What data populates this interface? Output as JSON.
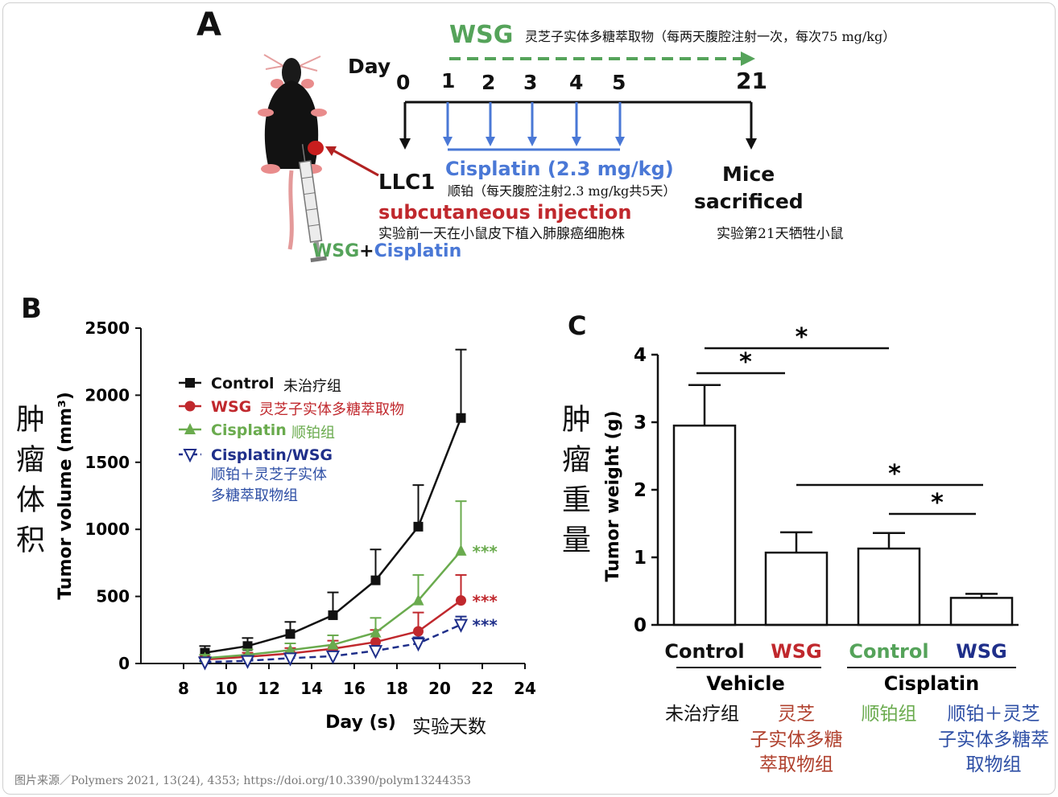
{
  "panel_a": {
    "label": "A",
    "wsg_label": "WSG",
    "wsg_cn": "灵芝子实体多糖萃取物（每两天腹腔注射一次，每次75 mg/kg）",
    "day_label": "Day",
    "days": [
      "0",
      "1",
      "2",
      "3",
      "4",
      "5",
      "21"
    ],
    "cisplatin_label": "Cisplatin  (2.3 mg/kg)",
    "cisplatin_cn": "顺铂（每天腹腔注射2.3 mg/kg共5天）",
    "llc1": "LLC1",
    "subcut": "subcutaneous injection",
    "subcut_cn": "实验前一天在小鼠皮下植入肺腺癌细胞株",
    "mice": "Mice",
    "sacrificed": "sacrificed",
    "sacrificed_cn": "实验第21天牺牲小鼠",
    "combo_wsg": "WSG",
    "combo_plus": "+",
    "combo_cis": "Cisplatin"
  },
  "panel_b": {
    "label": "B",
    "side_cn": "肿瘤体积",
    "xlabel_cn": "实验天数"
  },
  "panel_c": {
    "label": "C",
    "side_cn": "肿瘤重量"
  },
  "footer": "图片来源／Polymers 2021, 13(24), 4353; https://doi.org/10.3390/polym13244353",
  "colors": {
    "black": "#111111",
    "red": "#c0282d",
    "green": "#6aab4e",
    "blue": "#1f2f8a",
    "dgreen": "#55a35a",
    "cisblue": "#4a78d6"
  },
  "chart_data": [
    {
      "type": "line",
      "xlabel": "Day (s)",
      "ylabel": "Tumor volume (mm³)",
      "xlim": [
        6,
        24
      ],
      "ylim": [
        0,
        2500
      ],
      "xticks": [
        8,
        10,
        12,
        14,
        16,
        18,
        20,
        22,
        24
      ],
      "yticks": [
        0,
        500,
        1000,
        1500,
        2000,
        2500
      ],
      "x": [
        9,
        11,
        13,
        15,
        17,
        19,
        21
      ],
      "legend_position": "top-left",
      "series": [
        {
          "name": "Control",
          "name_cn": "未治疗组",
          "color": "#111111",
          "marker": "square",
          "dash": false,
          "values": [
            80,
            130,
            220,
            360,
            620,
            1020,
            1830
          ],
          "errors": [
            50,
            60,
            90,
            170,
            230,
            310,
            510
          ],
          "sig": ""
        },
        {
          "name": "WSG",
          "name_cn": "灵芝子实体多糖萃取物",
          "color": "#c0282d",
          "marker": "circle",
          "dash": false,
          "values": [
            30,
            50,
            75,
            110,
            160,
            240,
            470
          ],
          "errors": [
            20,
            30,
            40,
            60,
            90,
            140,
            190
          ],
          "sig": "***"
        },
        {
          "name": "Cisplatin",
          "name_cn": "顺铂组",
          "color": "#6aab4e",
          "marker": "triangle",
          "dash": false,
          "values": [
            40,
            65,
            100,
            140,
            230,
            470,
            840
          ],
          "errors": [
            25,
            40,
            50,
            70,
            110,
            190,
            370
          ],
          "sig": "***"
        },
        {
          "name": "Cisplatin/WSG",
          "name_cn": "顺铂＋灵芝子实体多糖萃取物组",
          "color": "#1f2f8a",
          "marker": "triangle-down",
          "dash": true,
          "values": [
            10,
            20,
            40,
            55,
            95,
            150,
            290
          ],
          "errors": [
            8,
            12,
            18,
            25,
            35,
            45,
            60
          ],
          "sig": "***"
        }
      ]
    },
    {
      "type": "bar",
      "ylabel": "Tumor weight (g)",
      "ylim": [
        0,
        4
      ],
      "yticks": [
        0,
        1,
        2,
        3,
        4
      ],
      "categories": [
        "Control",
        "WSG",
        "Control",
        "WSG"
      ],
      "category_colors": [
        "#111111",
        "#c0282d",
        "#55a35a",
        "#1f2f8a"
      ],
      "categories_cn": [
        "未治疗组",
        "灵芝子实体多糖萃取物组",
        "顺铂组",
        "顺铂＋灵芝子实体多糖萃取物组"
      ],
      "groups": [
        {
          "name": "Vehicle"
        },
        {
          "name": "Cisplatin"
        }
      ],
      "values": [
        2.95,
        1.07,
        1.13,
        0.4
      ],
      "errors": [
        0.6,
        0.3,
        0.23,
        0.06
      ],
      "significance": [
        {
          "from": 0,
          "to": 1,
          "label": "*"
        },
        {
          "from": 0,
          "to": 2,
          "label": "*"
        },
        {
          "from": 1,
          "to": 3,
          "label": "*"
        },
        {
          "from": 2,
          "to": 3,
          "label": "*"
        }
      ]
    }
  ]
}
